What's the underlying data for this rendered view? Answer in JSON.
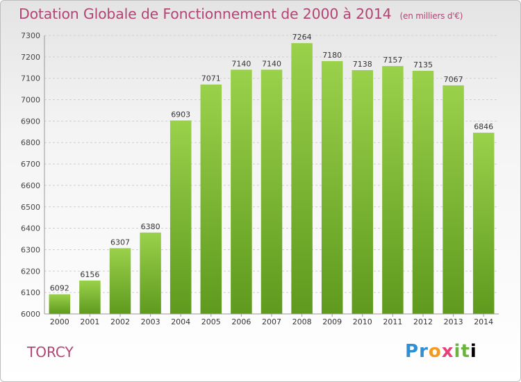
{
  "chart_data": {
    "type": "bar",
    "title": "Dotation Globale de Fonctionnement de 2000 à 2014",
    "subtitle": "(en milliers d'€)",
    "categories": [
      "2000",
      "2001",
      "2002",
      "2003",
      "2004",
      "2005",
      "2006",
      "2007",
      "2008",
      "2009",
      "2010",
      "2011",
      "2012",
      "2013",
      "2014"
    ],
    "values": [
      6092,
      6156,
      6307,
      6380,
      6903,
      7071,
      7140,
      7140,
      7264,
      7180,
      7138,
      7157,
      7135,
      7067,
      6846
    ],
    "ylim": [
      6000,
      7300
    ],
    "yticks": [
      6000,
      6100,
      6200,
      6300,
      6400,
      6500,
      6600,
      6700,
      6800,
      6900,
      7000,
      7100,
      7200,
      7300
    ],
    "grid": true,
    "bar_color_top": "#9ad14b",
    "bar_color_bottom": "#5f9a1e"
  },
  "footer": {
    "commune": "TORCY",
    "logo": "Proxiti"
  }
}
